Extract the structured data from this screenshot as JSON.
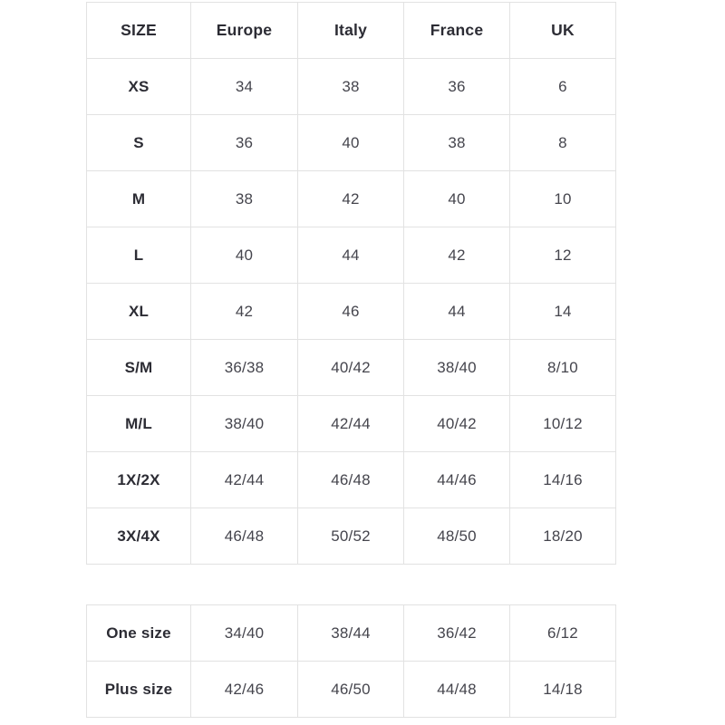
{
  "size_chart": {
    "headers": [
      "SIZE",
      "Europe",
      "Italy",
      "France",
      "UK"
    ],
    "rows": [
      {
        "size": "XS",
        "values": [
          "34",
          "38",
          "36",
          "6"
        ]
      },
      {
        "size": "S",
        "values": [
          "36",
          "40",
          "38",
          "8"
        ]
      },
      {
        "size": "M",
        "values": [
          "38",
          "42",
          "40",
          "10"
        ]
      },
      {
        "size": "L",
        "values": [
          "40",
          "44",
          "42",
          "12"
        ]
      },
      {
        "size": "XL",
        "values": [
          "42",
          "46",
          "44",
          "14"
        ]
      },
      {
        "size": "S/M",
        "values": [
          "36/38",
          "40/42",
          "38/40",
          "8/10"
        ]
      },
      {
        "size": "M/L",
        "values": [
          "38/40",
          "42/44",
          "40/42",
          "10/12"
        ]
      },
      {
        "size": "1X/2X",
        "values": [
          "42/44",
          "46/48",
          "44/46",
          "14/16"
        ]
      },
      {
        "size": "3X/4X",
        "values": [
          "46/48",
          "50/52",
          "48/50",
          "18/20"
        ]
      }
    ]
  },
  "special_sizes": {
    "rows": [
      {
        "size": "One size",
        "values": [
          "34/40",
          "38/44",
          "36/42",
          "6/12"
        ]
      },
      {
        "size": "Plus size",
        "values": [
          "42/46",
          "46/50",
          "44/48",
          "14/18"
        ]
      }
    ]
  },
  "colors": {
    "background": "#ffffff",
    "border": "#e2e2e2",
    "header_text": "#2c2c34",
    "cell_text": "#45454d"
  }
}
